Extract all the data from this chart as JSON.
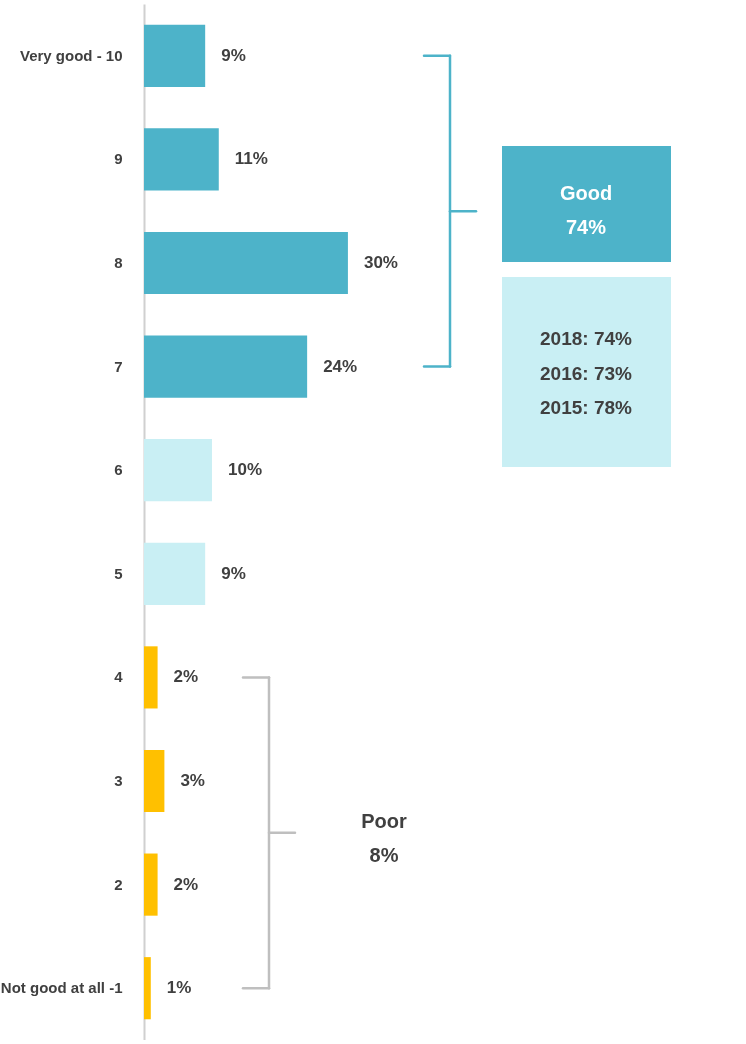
{
  "chart_data": {
    "type": "bar",
    "orientation": "horizontal",
    "categories": [
      "Very good - 10",
      "9",
      "8",
      "7",
      "6",
      "5",
      "4",
      "3",
      "2",
      "Not good at all -1"
    ],
    "values": [
      9,
      11,
      30,
      24,
      10,
      9,
      2,
      3,
      2,
      1
    ],
    "value_labels": [
      "9%",
      "11%",
      "30%",
      "24%",
      "10%",
      "9%",
      "2%",
      "3%",
      "2%",
      "1%"
    ],
    "colors": [
      "#4db3c9",
      "#4db3c9",
      "#4db3c9",
      "#4db3c9",
      "#c9eff4",
      "#c9eff4",
      "#ffc000",
      "#ffc000",
      "#ffc000",
      "#ffc000"
    ],
    "annotations": [
      "Good\n74%",
      "2018: 74%",
      "2016: 73%",
      "2015: 78%",
      "Poor\n8%"
    ]
  }
}
